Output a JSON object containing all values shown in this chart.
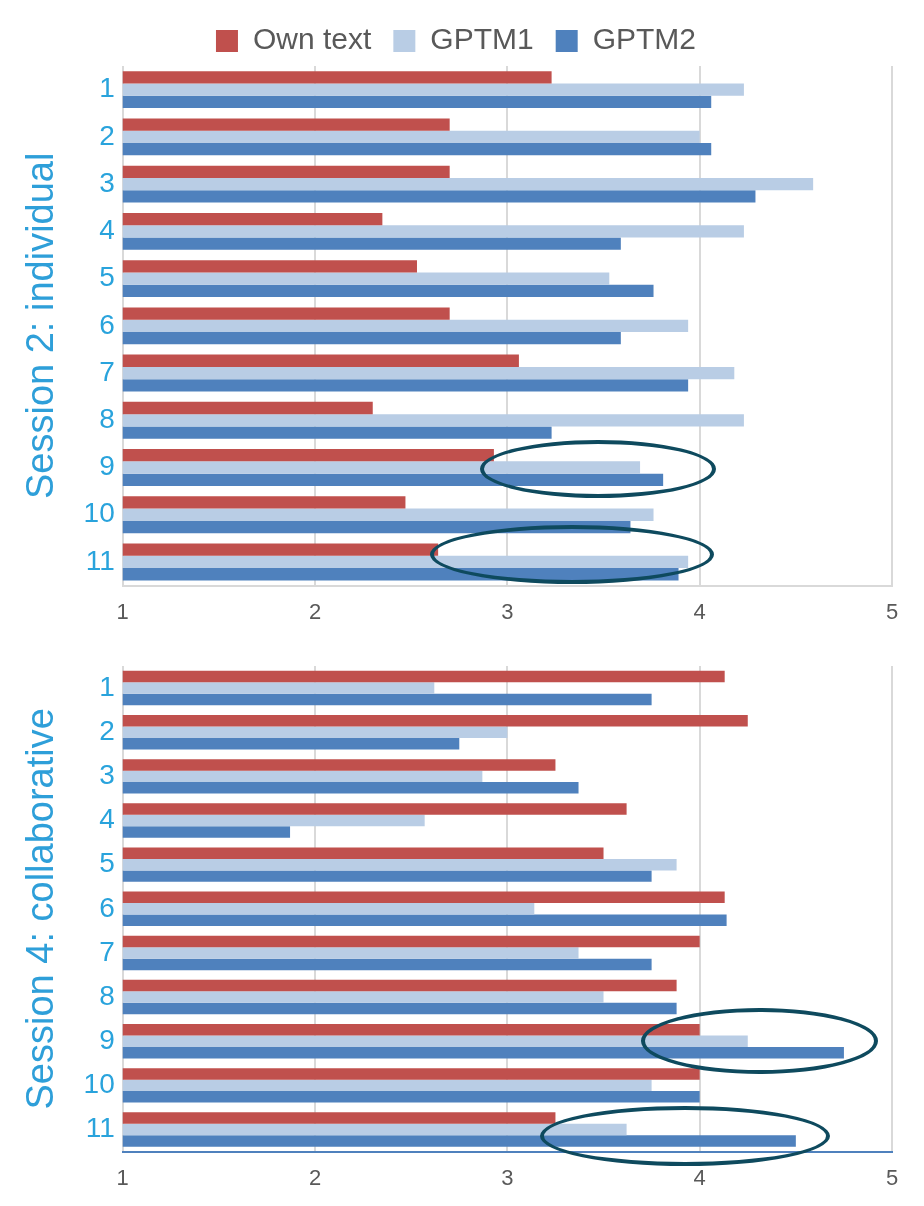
{
  "chart_data": [
    {
      "type": "bar",
      "orientation": "horizontal",
      "ylabel": "Session 2: individual",
      "categories": [
        "1",
        "2",
        "3",
        "4",
        "5",
        "6",
        "7",
        "8",
        "9",
        "10",
        "11"
      ],
      "series": [
        {
          "name": "Own text",
          "color": "#c0504d",
          "values": [
            3.23,
            2.7,
            2.7,
            2.35,
            2.53,
            2.7,
            3.06,
            2.3,
            2.93,
            2.47,
            2.64
          ]
        },
        {
          "name": "GPTM1",
          "color": "#b9cde5",
          "values": [
            4.23,
            4.0,
            4.59,
            4.23,
            3.53,
            3.94,
            4.18,
            4.23,
            3.69,
            3.76,
            3.94
          ]
        },
        {
          "name": "GPTM2",
          "color": "#4f81bd",
          "values": [
            4.06,
            4.06,
            4.29,
            3.59,
            3.76,
            3.59,
            3.94,
            3.23,
            3.81,
            3.64,
            3.89
          ]
        }
      ],
      "xlim": [
        1,
        5
      ],
      "xticks": [
        1,
        2,
        3,
        4,
        5
      ],
      "grid": "x",
      "legend": "top"
    },
    {
      "type": "bar",
      "orientation": "horizontal",
      "ylabel": "Session 4: collaborative",
      "categories": [
        "1",
        "2",
        "3",
        "4",
        "5",
        "6",
        "7",
        "8",
        "9",
        "10",
        "11"
      ],
      "series": [
        {
          "color": "#c0504d",
          "values": [
            4.13,
            4.25,
            3.25,
            3.62,
            3.5,
            4.13,
            4.0,
            3.88,
            4.0,
            4.0,
            3.25
          ]
        },
        {
          "color": "#b9cde5",
          "values": [
            2.62,
            3.0,
            2.87,
            2.57,
            3.88,
            3.14,
            3.37,
            3.5,
            4.25,
            3.75,
            3.62
          ]
        },
        {
          "color": "#4f81bd",
          "values": [
            3.75,
            2.75,
            3.37,
            1.87,
            3.75,
            4.14,
            3.75,
            3.88,
            4.75,
            4.0,
            4.5
          ]
        }
      ],
      "xlim": [
        1,
        5
      ],
      "xticks": [
        1,
        2,
        3,
        4,
        5
      ],
      "grid": "x"
    }
  ]
}
